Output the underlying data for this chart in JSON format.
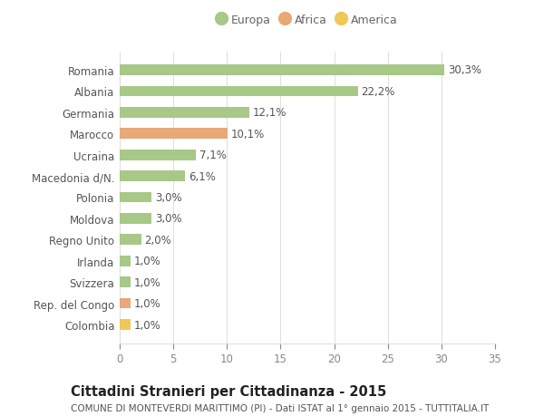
{
  "categories": [
    "Romania",
    "Albania",
    "Germania",
    "Marocco",
    "Ucraina",
    "Macedonia d/N.",
    "Polonia",
    "Moldova",
    "Regno Unito",
    "Irlanda",
    "Svizzera",
    "Rep. del Congo",
    "Colombia"
  ],
  "values": [
    30.3,
    22.2,
    12.1,
    10.1,
    7.1,
    6.1,
    3.0,
    3.0,
    2.0,
    1.0,
    1.0,
    1.0,
    1.0
  ],
  "labels": [
    "30,3%",
    "22,2%",
    "12,1%",
    "10,1%",
    "7,1%",
    "6,1%",
    "3,0%",
    "3,0%",
    "2,0%",
    "1,0%",
    "1,0%",
    "1,0%",
    "1,0%"
  ],
  "continent": [
    "Europa",
    "Europa",
    "Europa",
    "Africa",
    "Europa",
    "Europa",
    "Europa",
    "Europa",
    "Europa",
    "Europa",
    "Europa",
    "Africa",
    "America"
  ],
  "colors": {
    "Europa": "#a8c888",
    "Africa": "#e8a878",
    "America": "#f0c858"
  },
  "legend_items": [
    "Europa",
    "Africa",
    "America"
  ],
  "legend_colors": [
    "#a8c888",
    "#e8a878",
    "#f0c858"
  ],
  "xlim": [
    0,
    35
  ],
  "xticks": [
    0,
    5,
    10,
    15,
    20,
    25,
    30,
    35
  ],
  "title": "Cittadini Stranieri per Cittadinanza - 2015",
  "subtitle": "COMUNE DI MONTEVERDI MARITTIMO (PI) - Dati ISTAT al 1° gennaio 2015 - TUTTITALIA.IT",
  "bg_color": "#ffffff",
  "grid_color": "#e0e0e0",
  "bar_height": 0.5,
  "label_fontsize": 8.5,
  "ytick_fontsize": 8.5,
  "xtick_fontsize": 8.5,
  "title_fontsize": 10.5,
  "subtitle_fontsize": 7.5
}
